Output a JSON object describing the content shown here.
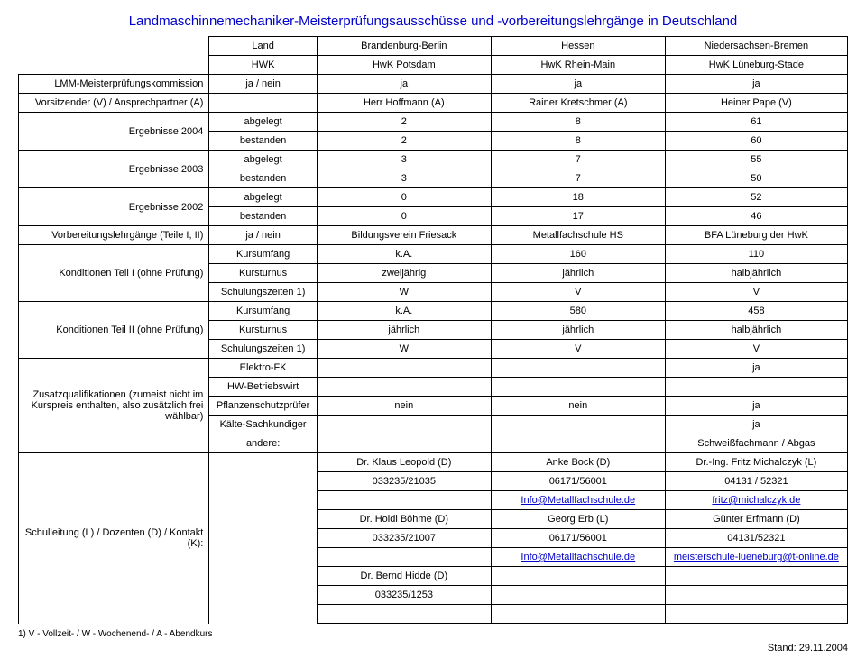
{
  "title": "Landmaschinnemechaniker-Meisterprüfungsausschüsse und -vorbereitungslehrgänge in Deutschland",
  "header": {
    "land": "Land",
    "region1": "Brandenburg-Berlin",
    "region2": "Hessen",
    "region3": "Niedersachsen-Bremen",
    "hwk": "HWK",
    "hwk1": "HwK Potsdam",
    "hwk2": "HwK Rhein-Main",
    "hwk3": "HwK Lüneburg-Stade"
  },
  "rows": {
    "kommission": {
      "label": "LMM-Meisterprüfungskommission",
      "sub": "ja / nein",
      "c1": "ja",
      "c2": "ja",
      "c3": "ja"
    },
    "vorsitzender": {
      "label": "Vorsitzender (V) / Ansprechpartner (A)",
      "c1": "Herr Hoffmann (A)",
      "c2": "Rainer Kretschmer (A)",
      "c3": "Heiner Pape (V)"
    },
    "erg2004": {
      "label": "Ergebnisse 2004",
      "abgelegt": "abgelegt",
      "bestanden": "bestanden",
      "a1": "2",
      "a2": "8",
      "a3": "61",
      "b1": "2",
      "b2": "8",
      "b3": "60"
    },
    "erg2003": {
      "label": "Ergebnisse 2003",
      "a1": "3",
      "a2": "7",
      "a3": "55",
      "b1": "3",
      "b2": "7",
      "b3": "50"
    },
    "erg2002": {
      "label": "Ergebnisse 2002",
      "a1": "0",
      "a2": "18",
      "a3": "52",
      "b1": "0",
      "b2": "17",
      "b3": "46"
    },
    "vorbereitung": {
      "label": "Vorbereitungslehrgänge (Teile I, II)",
      "sub": "ja / nein",
      "c1": "Bildungsverein Friesack",
      "c2": "Metallfachschule HS",
      "c3": "BFA Lüneburg der HwK"
    },
    "kond1": {
      "label": "Konditionen Teil I (ohne Prüfung)",
      "kursumfang": "Kursumfang",
      "kursturnus": "Kursturnus",
      "schulung": "Schulungszeiten 1)",
      "ku1": "k.A.",
      "ku2": "160",
      "ku3": "110",
      "kt1": "zweijährig",
      "kt2": "jährlich",
      "kt3": "halbjährlich",
      "s1": "W",
      "s2": "V",
      "s3": "V"
    },
    "kond2": {
      "label": "Konditionen Teil II (ohne Prüfung)",
      "ku1": "k.A.",
      "ku2": "580",
      "ku3": "458",
      "kt1": "jährlich",
      "kt2": "jährlich",
      "kt3": "halbjährlich",
      "s1": "W",
      "s2": "V",
      "s3": "V"
    },
    "zusatz": {
      "label": "Zusatzqualifikationen (zumeist nicht im Kurspreis enthalten, also zusätzlich frei wählbar)",
      "elektro": "Elektro-FK",
      "hw": "HW-Betriebswirt",
      "pflanz": "Pflanzenschutzprüfer",
      "kaelte": "Kälte-Sachkundiger",
      "andere": "andere:",
      "e3": "ja",
      "p1": "nein",
      "p2": "nein",
      "p3": "ja",
      "k3": "ja",
      "a3": "Schweißfachmann / Abgas"
    },
    "schulleitung": {
      "label": "Schulleitung (L) / Dozenten (D) / Kontakt (K):",
      "r1c1": "Dr. Klaus Leopold (D)",
      "r1c2": "Anke Bock (D)",
      "r1c3": "Dr.-Ing. Fritz Michalczyk (L)",
      "r2c1": "033235/21035",
      "r2c2": "06171/56001",
      "r2c3": "04131 / 52321",
      "r3c2": "Info@Metallfachschule.de",
      "r3c3": "fritz@michalczyk.de",
      "r4c1": "Dr. Holdi Böhme (D)",
      "r4c2": "Georg Erb (L)",
      "r4c3": "Günter Erfmann (D)",
      "r5c1": "033235/21007",
      "r5c2": "06171/56001",
      "r5c3": "04131/52321",
      "r6c2": "Info@Metallfachschule.de",
      "r6c3": "meisterschule-lueneburg@t-online.de",
      "r7c1": "Dr. Bernd Hidde (D)",
      "r8c1": "033235/1253"
    }
  },
  "footnote": "1) V - Vollzeit- / W - Wochenend- / A - Abendkurs",
  "date": "Stand: 29.11.2004"
}
